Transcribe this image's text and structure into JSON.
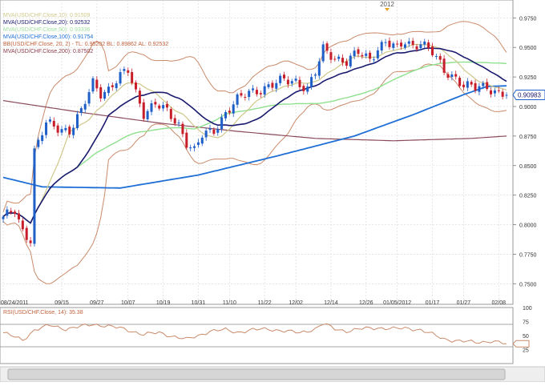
{
  "chart_data": [
    {
      "type": "candlestick",
      "symbol": "USD/CHF",
      "year_marker": "2012",
      "y_ticks": [
        "0.9750",
        "0.9500",
        "0.9250",
        "0.9000",
        "0.8750",
        "0.8500",
        "0.8250",
        "0.8000",
        "0.7750",
        "0.7500"
      ],
      "y_tick_values": [
        0.975,
        0.95,
        0.925,
        0.9,
        0.875,
        0.85,
        0.825,
        0.8,
        0.775,
        0.75
      ],
      "ylim": [
        0.738,
        0.982
      ],
      "x_ticks": [
        "08/24/2011",
        "09/15",
        "09/27",
        "10/07",
        "10/19",
        "10/31",
        "11/10",
        "11/22",
        "12/02",
        "12/14",
        "12/26",
        "01/05/2012",
        "01/17",
        "01/27",
        "02/08"
      ],
      "x_tick_bars": [
        0,
        15,
        24,
        32,
        41,
        50,
        58,
        67,
        75,
        84,
        93,
        101,
        110,
        118,
        127
      ],
      "bar_count": 130,
      "last_price": "0.90983",
      "last_price_value": 0.9098,
      "legend": [
        {
          "text": "MVA(USD/CHF.Close,10): 0.91509",
          "color": "#cfc88a"
        },
        {
          "text": "MVA(USD/CHF.Close,20): 0.92532",
          "color": "#1a1a6e"
        },
        {
          "text": "MVA(USD/CHF.Close,50): 0.93336",
          "color": "#9fe09f"
        },
        {
          "text": "MVA(USD/CHF.Close,100): 0.91754",
          "color": "#1f6fd6"
        },
        {
          "text": "BB(USD/CHF.Close, 20, 2) - TL: 0.95202  BL: 0.89862  AL: 0.92532",
          "color": "#c0603a"
        },
        {
          "text": "MVA(USD/CHF.Close,200): 0.87502",
          "color": "#8a3a4a"
        }
      ],
      "colors": {
        "up": "#1f5fc8",
        "down": "#c81e2a",
        "bb": "#c98a6a",
        "ma10": "#cfc88a",
        "ma20": "#1a1a6e",
        "ma50": "#8fe08f",
        "ma100": "#1f6fd6",
        "ma200": "#8a4a5a",
        "grid": "#d8d8d8"
      },
      "close_anchors": [
        [
          0,
          0.805
        ],
        [
          3,
          0.812
        ],
        [
          5,
          0.795
        ],
        [
          7,
          0.788
        ],
        [
          8,
          0.862
        ],
        [
          11,
          0.885
        ],
        [
          14,
          0.882
        ],
        [
          17,
          0.88
        ],
        [
          20,
          0.895
        ],
        [
          23,
          0.92
        ],
        [
          25,
          0.912
        ],
        [
          27,
          0.915
        ],
        [
          30,
          0.925
        ],
        [
          32,
          0.93
        ],
        [
          34,
          0.912
        ],
        [
          36,
          0.895
        ],
        [
          39,
          0.902
        ],
        [
          42,
          0.895
        ],
        [
          45,
          0.885
        ],
        [
          47,
          0.87
        ],
        [
          49,
          0.862
        ],
        [
          51,
          0.875
        ],
        [
          54,
          0.88
        ],
        [
          57,
          0.895
        ],
        [
          60,
          0.905
        ],
        [
          63,
          0.912
        ],
        [
          66,
          0.915
        ],
        [
          69,
          0.918
        ],
        [
          72,
          0.922
        ],
        [
          75,
          0.922
        ],
        [
          78,
          0.915
        ],
        [
          80,
          0.928
        ],
        [
          82,
          0.948
        ],
        [
          85,
          0.942
        ],
        [
          88,
          0.938
        ],
        [
          91,
          0.945
        ],
        [
          94,
          0.94
        ],
        [
          96,
          0.95
        ],
        [
          98,
          0.955
        ],
        [
          101,
          0.948
        ],
        [
          103,
          0.955
        ],
        [
          105,
          0.952
        ],
        [
          107,
          0.955
        ],
        [
          110,
          0.945
        ],
        [
          113,
          0.93
        ],
        [
          116,
          0.925
        ],
        [
          118,
          0.918
        ],
        [
          121,
          0.915
        ],
        [
          124,
          0.917
        ],
        [
          127,
          0.912
        ],
        [
          129,
          0.9098
        ]
      ],
      "ma100_anchors": [
        [
          0,
          0.84
        ],
        [
          10,
          0.832
        ],
        [
          30,
          0.831
        ],
        [
          50,
          0.842
        ],
        [
          70,
          0.858
        ],
        [
          90,
          0.875
        ],
        [
          105,
          0.893
        ],
        [
          118,
          0.91
        ],
        [
          124,
          0.917
        ],
        [
          129,
          0.9175
        ]
      ],
      "ma200_anchors": [
        [
          0,
          0.905
        ],
        [
          20,
          0.895
        ],
        [
          40,
          0.886
        ],
        [
          60,
          0.879
        ],
        [
          80,
          0.873
        ],
        [
          100,
          0.871
        ],
        [
          120,
          0.873
        ],
        [
          129,
          0.875
        ]
      ]
    },
    {
      "type": "line",
      "label": "RSI(USD/CHF.Close, 14): 35.38",
      "y_ticks": [
        "100",
        "75",
        "50",
        "25"
      ],
      "y_tick_values": [
        100,
        75,
        50,
        25
      ],
      "ylim": [
        0,
        100
      ],
      "guide_lines": [
        70,
        30
      ],
      "values": [
        [
          0,
          55
        ],
        [
          5,
          42
        ],
        [
          8,
          60
        ],
        [
          12,
          68
        ],
        [
          16,
          62
        ],
        [
          20,
          66
        ],
        [
          23,
          70
        ],
        [
          26,
          68
        ],
        [
          30,
          63
        ],
        [
          33,
          58
        ],
        [
          36,
          52
        ],
        [
          40,
          55
        ],
        [
          44,
          48
        ],
        [
          47,
          43
        ],
        [
          50,
          50
        ],
        [
          53,
          58
        ],
        [
          57,
          60
        ],
        [
          60,
          56
        ],
        [
          64,
          60
        ],
        [
          68,
          62
        ],
        [
          72,
          58
        ],
        [
          76,
          55
        ],
        [
          80,
          62
        ],
        [
          82,
          71
        ],
        [
          85,
          62
        ],
        [
          88,
          58
        ],
        [
          92,
          62
        ],
        [
          96,
          64
        ],
        [
          100,
          62
        ],
        [
          104,
          63
        ],
        [
          107,
          60
        ],
        [
          110,
          52
        ],
        [
          113,
          44
        ],
        [
          117,
          40
        ],
        [
          121,
          38
        ],
        [
          125,
          40
        ],
        [
          129,
          35
        ]
      ],
      "last_value": 35.38
    }
  ]
}
